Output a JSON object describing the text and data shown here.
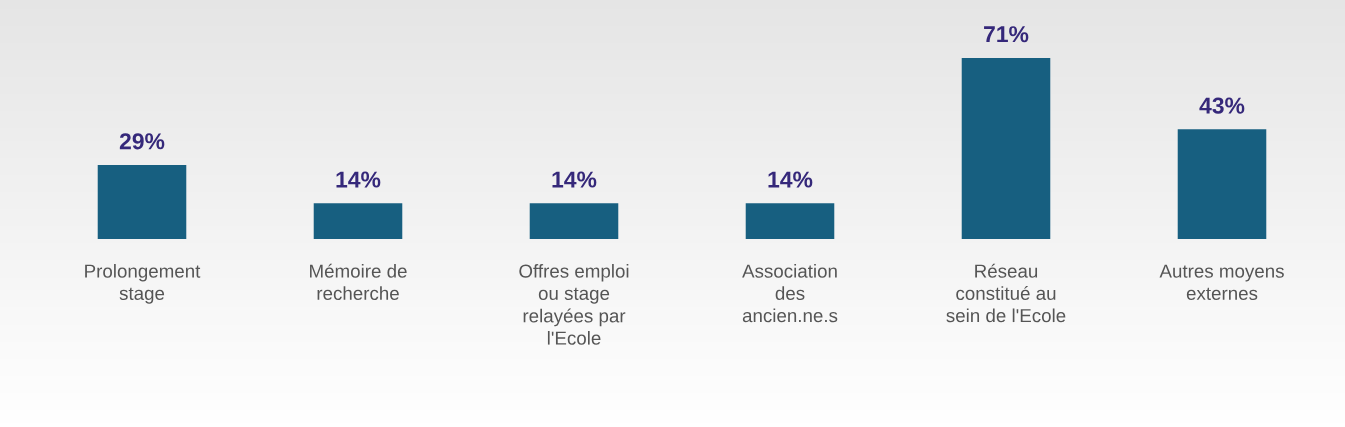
{
  "chart_data": {
    "type": "bar",
    "categories": [
      "Prolongement\nstage",
      "Mémoire de\nrecherche",
      "Offres emploi\nou stage\nrelayées par\nl'Ecole",
      "Association\ndes\nancien.ne.s",
      "Réseau\nconstitué au\nsein de l'Ecole",
      "Autres moyens\nexternes"
    ],
    "values": [
      29,
      14,
      14,
      14,
      71,
      43
    ],
    "value_labels": [
      "29%",
      "14%",
      "14%",
      "14%",
      "71%",
      "43%"
    ],
    "color": "#175f80",
    "grid": false,
    "legend": false
  }
}
